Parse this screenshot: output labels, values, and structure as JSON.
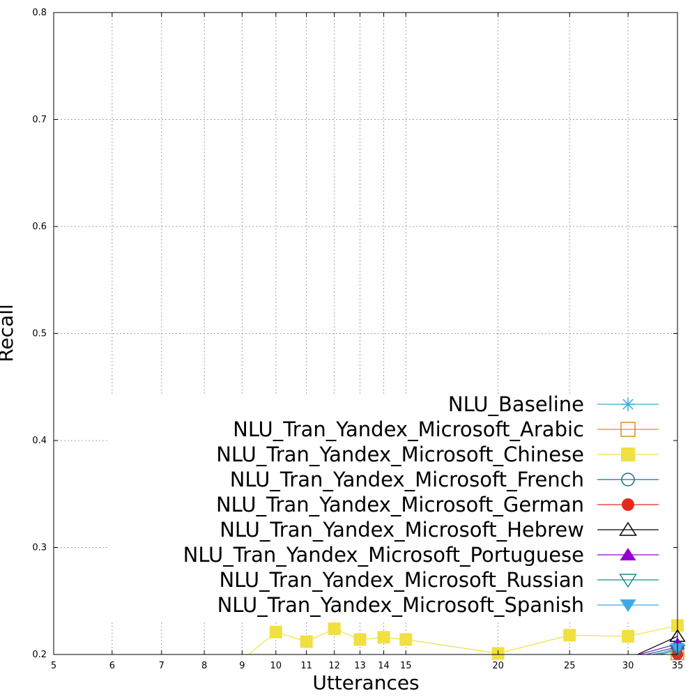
{
  "chart_data": {
    "type": "line",
    "xlabel": "Utterances",
    "ylabel": "Recall",
    "xlim": [
      5,
      35
    ],
    "ylim": [
      0.2,
      0.8
    ],
    "x_scale": "log",
    "x_ticks": [
      5,
      6,
      7,
      8,
      9,
      10,
      11,
      12,
      13,
      14,
      15,
      20,
      25,
      30,
      35
    ],
    "y_ticks": [
      0.2,
      0.3,
      0.4,
      0.5,
      0.6,
      0.7,
      0.8
    ],
    "y_tick_labels": [
      "0.2",
      "0.3",
      "0.4",
      "0.5",
      "0.6",
      "0.7",
      "0.8"
    ],
    "grid": true,
    "legend_position": "bottom-right",
    "series": [
      {
        "name": "NLU_Baseline",
        "color": "#3fa9d8",
        "marker": "star",
        "x": [
          30,
          35
        ],
        "y": [
          0.195,
          0.205
        ]
      },
      {
        "name": "NLU_Tran_Yandex_Microsoft_Arabic",
        "color": "#d98f1a",
        "marker": "square-open",
        "x": [
          30,
          35
        ],
        "y": [
          0.193,
          0.201
        ]
      },
      {
        "name": "NLU_Tran_Yandex_Microsoft_Chinese",
        "color": "#f0e040",
        "marker": "square-filled",
        "x": [
          9,
          10,
          11,
          12,
          13,
          14,
          15,
          20,
          25,
          30,
          35
        ],
        "y": [
          0.195,
          0.221,
          0.212,
          0.224,
          0.214,
          0.216,
          0.214,
          0.201,
          0.218,
          0.217,
          0.227
        ]
      },
      {
        "name": "NLU_Tran_Yandex_Microsoft_French",
        "color": "#1a6e8a",
        "marker": "circle-open",
        "x": [
          30,
          35
        ],
        "y": [
          0.196,
          0.207
        ]
      },
      {
        "name": "NLU_Tran_Yandex_Microsoft_German",
        "color": "#e8281e",
        "marker": "circle-filled",
        "x": [
          30,
          35
        ],
        "y": [
          0.192,
          0.2
        ]
      },
      {
        "name": "NLU_Tran_Yandex_Microsoft_Hebrew",
        "color": "#000000",
        "marker": "triangle-open",
        "x": [
          30,
          35
        ],
        "y": [
          0.196,
          0.217
        ]
      },
      {
        "name": "NLU_Tran_Yandex_Microsoft_Portuguese",
        "color": "#9400d3",
        "marker": "triangle-filled",
        "x": [
          30,
          35
        ],
        "y": [
          0.197,
          0.21
        ]
      },
      {
        "name": "NLU_Tran_Yandex_Microsoft_Russian",
        "color": "#1a8a8a",
        "marker": "triangle-down-open",
        "x": [
          30,
          35
        ],
        "y": [
          0.193,
          0.204
        ]
      },
      {
        "name": "NLU_Tran_Yandex_Microsoft_Spanish",
        "color": "#3fa9e8",
        "marker": "triangle-down-filled",
        "x": [
          30,
          35
        ],
        "y": [
          0.192,
          0.206
        ]
      }
    ]
  }
}
